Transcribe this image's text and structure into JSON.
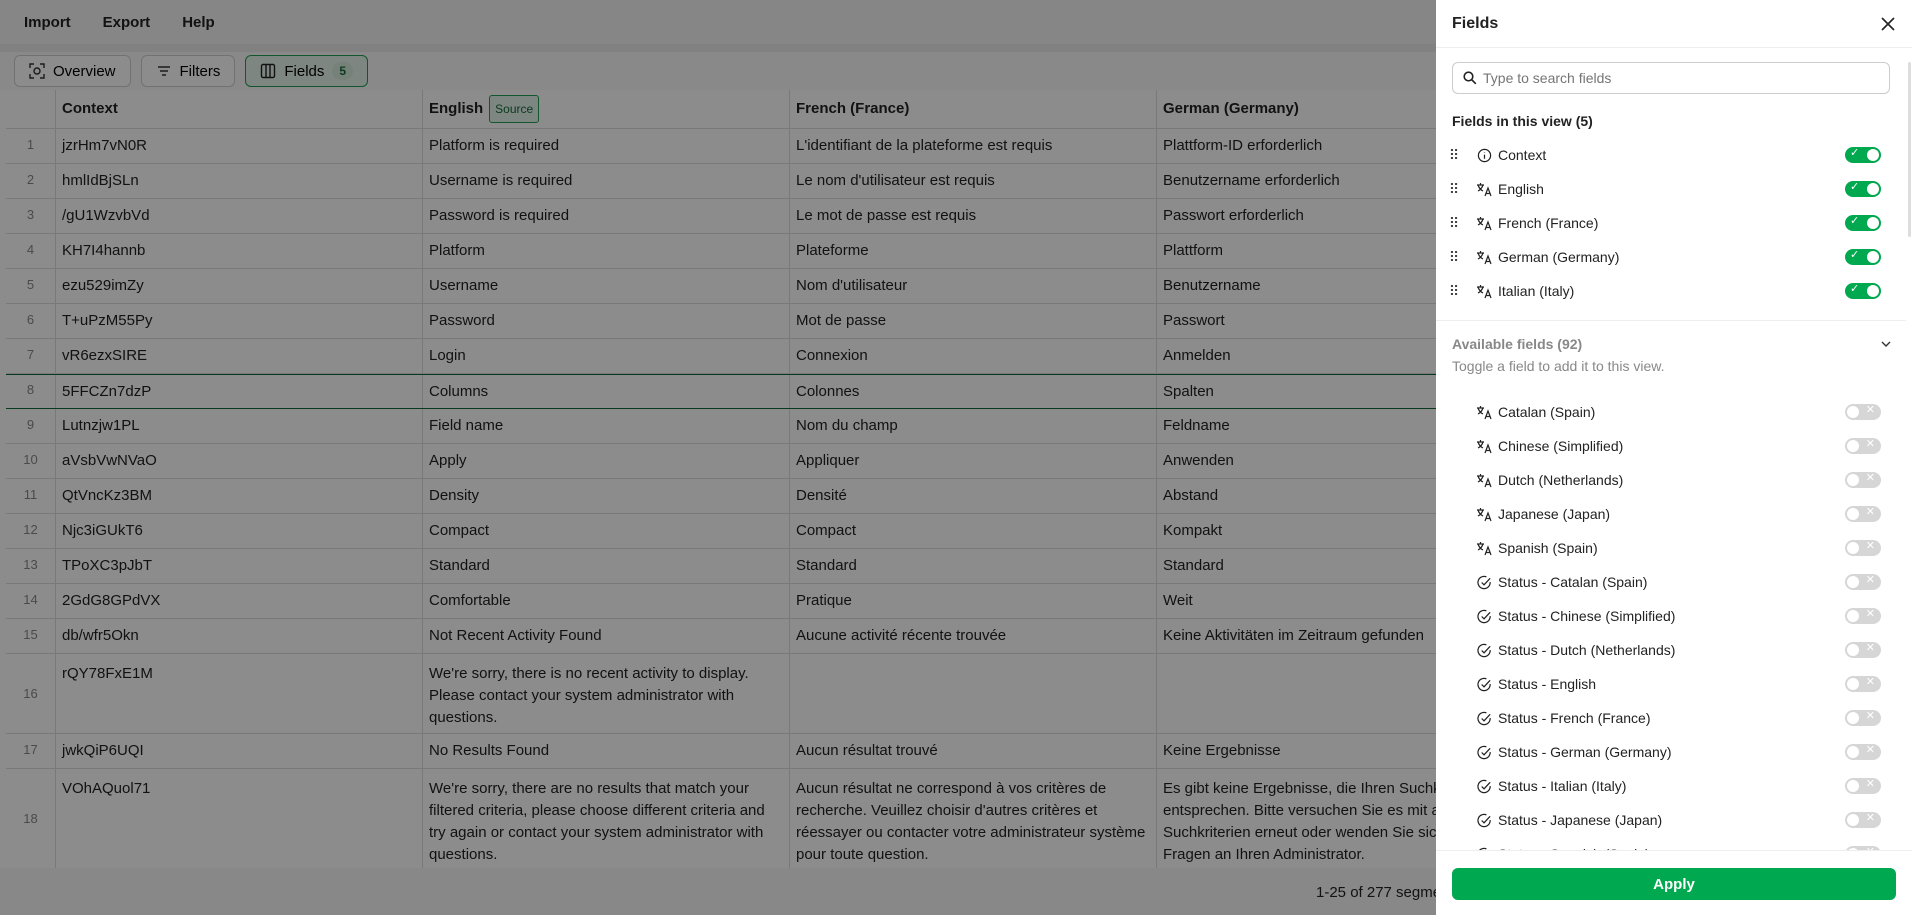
{
  "menu": [
    "Import",
    "Export",
    "Help"
  ],
  "toolbar": {
    "overview": "Overview",
    "filters": "Filters",
    "fields": "Fields",
    "fields_count": "5"
  },
  "table": {
    "headers": [
      "Context",
      "English",
      "French (France)",
      "German (Germany)"
    ],
    "source_badge": "Source",
    "selected_row": 8,
    "rows": [
      [
        "1",
        "jzrHm7vN0R",
        "Platform is required",
        "L'identifiant de la plateforme est requis",
        "Plattform-ID erforderlich"
      ],
      [
        "2",
        "hmlIdBjSLn",
        "Username is required",
        "Le nom d'utilisateur est requis",
        "Benutzername erforderlich"
      ],
      [
        "3",
        "/gU1WzvbVd",
        "Password is required",
        "Le mot de passe est requis",
        "Passwort erforderlich"
      ],
      [
        "4",
        "KH7I4hannb",
        "Platform",
        "Plateforme",
        "Plattform"
      ],
      [
        "5",
        "ezu529imZy",
        "Username",
        "Nom d'utilisateur",
        "Benutzername"
      ],
      [
        "6",
        "T+uPzM55Py",
        "Password",
        "Mot de passe",
        "Passwort"
      ],
      [
        "7",
        "vR6ezxSIRE",
        "Login",
        "Connexion",
        "Anmelden"
      ],
      [
        "8",
        "5FFCZn7dzP",
        "Columns",
        "Colonnes",
        "Spalten"
      ],
      [
        "9",
        "Lutnzjw1PL",
        "Field name",
        "Nom du champ",
        "Feldname"
      ],
      [
        "10",
        "aVsbVwNVaO",
        "Apply",
        "Appliquer",
        "Anwenden"
      ],
      [
        "11",
        "QtVncKz3BM",
        "Density",
        "Densité",
        "Abstand"
      ],
      [
        "12",
        "Njc3iGUkT6",
        "Compact",
        "Compact",
        "Kompakt"
      ],
      [
        "13",
        "TPoXC3pJbT",
        "Standard",
        "Standard",
        "Standard"
      ],
      [
        "14",
        "2GdG8GPdVX",
        "Comfortable",
        "Pratique",
        "Weit"
      ],
      [
        "15",
        "db/wfr5Okn",
        "Not Recent Activity Found",
        "Aucune activité récente trouvée",
        "Keine Aktivitäten im Zeitraum gefunden"
      ],
      [
        "16",
        "rQY78FxE1M",
        "We're sorry, there is no recent activity to display.\nPlease contact your system administrator with\nquestions.",
        "",
        ""
      ],
      [
        "17",
        "jwkQiP6UQI",
        "No Results Found",
        "Aucun résultat trouvé",
        "Keine Ergebnisse"
      ],
      [
        "18",
        "VOhAQuol71",
        "We're sorry, there are no results that match your\nfiltered criteria, please choose different criteria and\ntry again or contact your system administrator with\nquestions.",
        "Aucun résultat ne correspond à vos critères de\nrecherche. Veuillez choisir d'autres critères et\nréessayer ou contacter votre administrateur système\npour toute question.",
        "Es gibt keine Ergebnisse, die Ihren Suchk\nentsprechen. Bitte versuchen Sie es mit a\nSuchkriterien erneut oder wenden Sie sic\nFragen an Ihren Administrator."
      ]
    ]
  },
  "footer": {
    "pagination": "1-25 of 277 segme"
  },
  "panel": {
    "title": "Fields",
    "search_placeholder": "Type to search fields",
    "in_view_title": "Fields in this view (5)",
    "in_view": [
      {
        "label": "Context",
        "icon": "info-icon",
        "on": true
      },
      {
        "label": "English",
        "icon": "translate-icon",
        "on": true
      },
      {
        "label": "French (France)",
        "icon": "translate-icon",
        "on": true
      },
      {
        "label": "German (Germany)",
        "icon": "translate-icon",
        "on": true
      },
      {
        "label": "Italian (Italy)",
        "icon": "translate-icon",
        "on": true
      }
    ],
    "available_title": "Available fields (92)",
    "available_hint": "Toggle a field to add it to this view.",
    "available": [
      {
        "label": "Catalan (Spain)",
        "icon": "translate-icon",
        "on": false
      },
      {
        "label": "Chinese (Simplified)",
        "icon": "translate-icon",
        "on": false
      },
      {
        "label": "Dutch (Netherlands)",
        "icon": "translate-icon",
        "on": false
      },
      {
        "label": "Japanese (Japan)",
        "icon": "translate-icon",
        "on": false
      },
      {
        "label": "Spanish (Spain)",
        "icon": "translate-icon",
        "on": false
      },
      {
        "label": "Status - Catalan (Spain)",
        "icon": "status-check-icon",
        "on": false
      },
      {
        "label": "Status - Chinese (Simplified)",
        "icon": "status-check-icon",
        "on": false
      },
      {
        "label": "Status - Dutch (Netherlands)",
        "icon": "status-check-icon",
        "on": false
      },
      {
        "label": "Status - English",
        "icon": "status-check-icon",
        "on": false
      },
      {
        "label": "Status - French (France)",
        "icon": "status-check-icon",
        "on": false
      },
      {
        "label": "Status - German (Germany)",
        "icon": "status-check-icon",
        "on": false
      },
      {
        "label": "Status - Italian (Italy)",
        "icon": "status-check-icon",
        "on": false
      },
      {
        "label": "Status - Japanese (Japan)",
        "icon": "status-check-icon",
        "on": false
      },
      {
        "label": "Status - Spanish (Spain)",
        "icon": "status-check-icon",
        "on": false
      }
    ],
    "apply": "Apply",
    "colors": {
      "accent": "#00a84f",
      "toggle_off": "#d6d6d6"
    }
  }
}
